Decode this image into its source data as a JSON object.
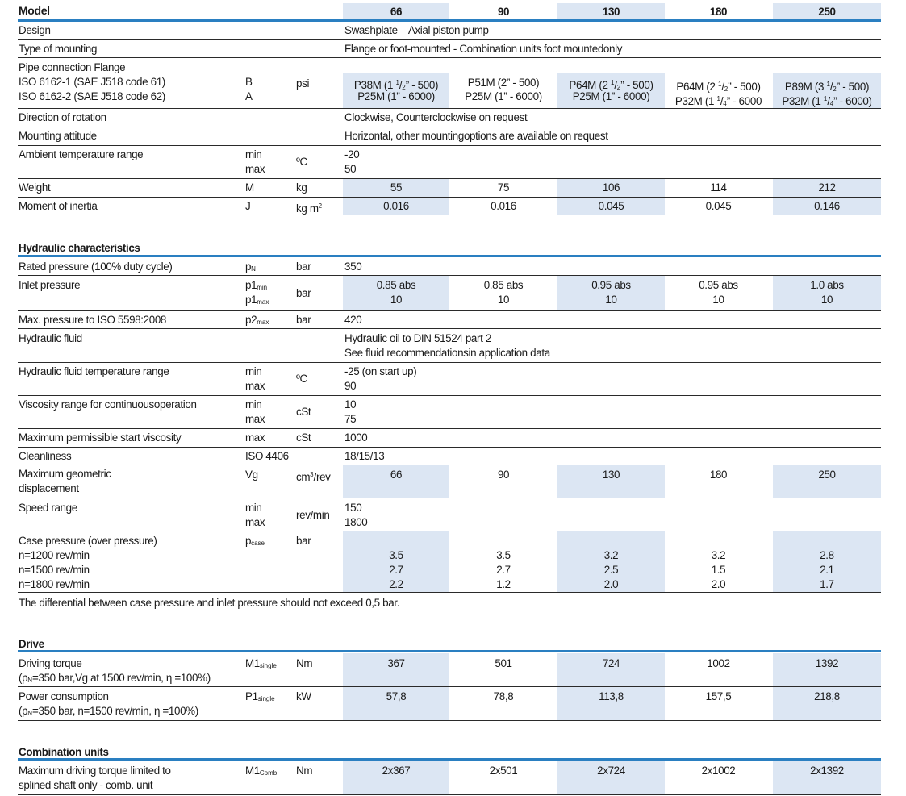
{
  "header": {
    "model_label": "Model",
    "models": [
      "66",
      "90",
      "130",
      "180",
      "250"
    ]
  },
  "general": {
    "design": {
      "label": "Design",
      "value": "Swashplate – Axial piston pump"
    },
    "mounting": {
      "label": "Type of mounting",
      "value": "Flange or foot-mounted - Combination units foot mountedonly"
    },
    "pipe": {
      "label": "Pipe connection Flange",
      "iso1": "ISO 6162-1 (SAE J518 code 61)",
      "iso2": "ISO 6162-2 (SAE J518 code 62)",
      "sym_b": "B",
      "sym_a": "A",
      "unit": "psi",
      "values": [
        {
          "b_pre": "P38M (1 ",
          "b_num": "1",
          "b_den": "2",
          "b_post": "” - 500)",
          "a": "P25M (1” - 6000)"
        },
        {
          "b_pre": "P51M (2” - 500)",
          "b_num": "",
          "b_den": "",
          "b_post": "",
          "a": "P25M (1” - 6000)"
        },
        {
          "b_pre": "P64M (2 ",
          "b_num": "1",
          "b_den": "2",
          "b_post": "” - 500)",
          "a": "P25M (1” - 6000)"
        },
        {
          "b_pre": "P64M (2 ",
          "b_num": "1",
          "b_den": "2",
          "b_post": "” - 500)",
          "a_pre": "P32M (1 ",
          "a_num": "1",
          "a_den": "4",
          "a_post": "” - 6000"
        },
        {
          "b_pre": "P89M (3 ",
          "b_num": "1",
          "b_den": "2",
          "b_post": "” - 500)",
          "a_pre": "P32M (1 ",
          "a_num": "1",
          "a_den": "4",
          "a_post": "” - 6000)"
        }
      ]
    },
    "rotation": {
      "label": "Direction of rotation",
      "value": "Clockwise, Counterclockwise on request"
    },
    "attitude": {
      "label": "Mounting attitude",
      "value": "Horizontal, other mountingoptions are available  on request"
    },
    "ambient": {
      "label": "Ambient temperature range",
      "min_label": "min",
      "max_label": "max",
      "unit": "ºC",
      "min": "-20",
      "max": "50"
    },
    "weight": {
      "label": "Weight",
      "symbol": "M",
      "unit": "kg",
      "values": [
        "55",
        "75",
        "106",
        "114",
        "212"
      ]
    },
    "inertia": {
      "label": "Moment of inertia",
      "symbol": "J",
      "unit": "kg m",
      "unit_sup": "2",
      "values": [
        "0.016",
        "0.016",
        "0.045",
        "0.045",
        "0.146"
      ]
    }
  },
  "hydraulic": {
    "title": "Hydraulic characteristics",
    "rated": {
      "label": "Rated pressure (100% duty cycle)",
      "sym": "p",
      "sym_sub": "N",
      "unit": "bar",
      "value": "350"
    },
    "inlet": {
      "label": "Inlet pressure",
      "sym": "p1",
      "sub_min": "min",
      "sub_max": "max",
      "unit": "bar",
      "min_values": [
        "0.85 abs",
        "0.85 abs",
        "0.95 abs",
        "0.95 abs",
        "1.0 abs"
      ],
      "max_values": [
        "10",
        "10",
        "10",
        "10",
        "10"
      ]
    },
    "maxp": {
      "label": "Max. pressure to ISO 5598:2008",
      "sym": "p2",
      "sym_sub": "max",
      "unit": "bar",
      "value": "420"
    },
    "fluid": {
      "label": "Hydraulic fluid",
      "line1": "Hydraulic oil to DIN 51524 part 2",
      "line2": "See fluid recommendationsin application data"
    },
    "fluid_temp": {
      "label": "Hydraulic fluid temperature range",
      "min_label": "min",
      "max_label": "max",
      "unit": "ºC",
      "min": "-25 (on start up)",
      "max": "90"
    },
    "viscosity": {
      "label": "Viscosity  range for continuousoperation",
      "min_label": "min",
      "max_label": "max",
      "unit": "cSt",
      "min": "10",
      "max": "75"
    },
    "start_visc": {
      "label": "Maximum permissible start viscosity",
      "sym": "max",
      "unit": "cSt",
      "value": "1000"
    },
    "clean": {
      "label": "Cleanliness",
      "sym": "ISO 4406",
      "value": "18/15/13"
    },
    "disp": {
      "label1": "Maximum geometric",
      "label2": "displacement",
      "sym": "Vg",
      "unit_pre": "cm",
      "unit_sup": "3",
      "unit_post": "/rev",
      "values": [
        "66",
        "90",
        "130",
        "180",
        "250"
      ]
    },
    "speed": {
      "label": "Speed range",
      "min_label": "min",
      "max_label": "max",
      "unit": "rev/min",
      "min": "150",
      "max": "1800"
    },
    "case": {
      "label": "Case pressure (over pressure)",
      "sym": "p",
      "sym_sub": "case",
      "unit": "bar",
      "rows": [
        "n=1200 rev/min",
        "n=1500 rev/min",
        "n=1800 rev/min"
      ],
      "values": [
        [
          "3.5",
          "2.7",
          "2.2"
        ],
        [
          "3.5",
          "2.7",
          "1.2"
        ],
        [
          "3.2",
          "2.5",
          "2.0"
        ],
        [
          "3.2",
          "1.5",
          "2.0"
        ],
        [
          "2.8",
          "2.1",
          "1.7"
        ]
      ]
    },
    "note": "The differential  between case pressure and inlet pressure should not exceed 0,5  bar."
  },
  "drive": {
    "title": "Drive",
    "torque": {
      "label1": "Driving torque",
      "label2_pre": "(p",
      "label2_sub": "N",
      "label2_post": "=350 bar,Vg at 1500 rev/min,  η  =100%)",
      "sym": "M1",
      "sym_sub": "single",
      "unit": "Nm",
      "values": [
        "367",
        "501",
        "724",
        "1002",
        "1392"
      ]
    },
    "power": {
      "label1": "Power consumption",
      "label2_pre": "(p",
      "label2_sub": "N",
      "label2_post": "=350 bar,  n=1500 rev/min,  η  =100%)",
      "sym": "P1",
      "sym_sub": "single",
      "unit": "kW",
      "values": [
        "57,8",
        "78,8",
        "113,8",
        "157,5",
        "218,8"
      ]
    }
  },
  "combination": {
    "title": "Combination units",
    "torque": {
      "label1": "Maximum driving torque limited to",
      "label2": "splined shaft only - comb. unit",
      "sym": "M1",
      "sym_sub": "Comb.",
      "unit": "Nm",
      "values": [
        "2x367",
        "2x501",
        "2x724",
        "2x1002",
        "2x1392"
      ]
    }
  },
  "colors": {
    "accent": "#2a7fc1",
    "band": "#dce6f3",
    "text": "#1a1a1a"
  }
}
